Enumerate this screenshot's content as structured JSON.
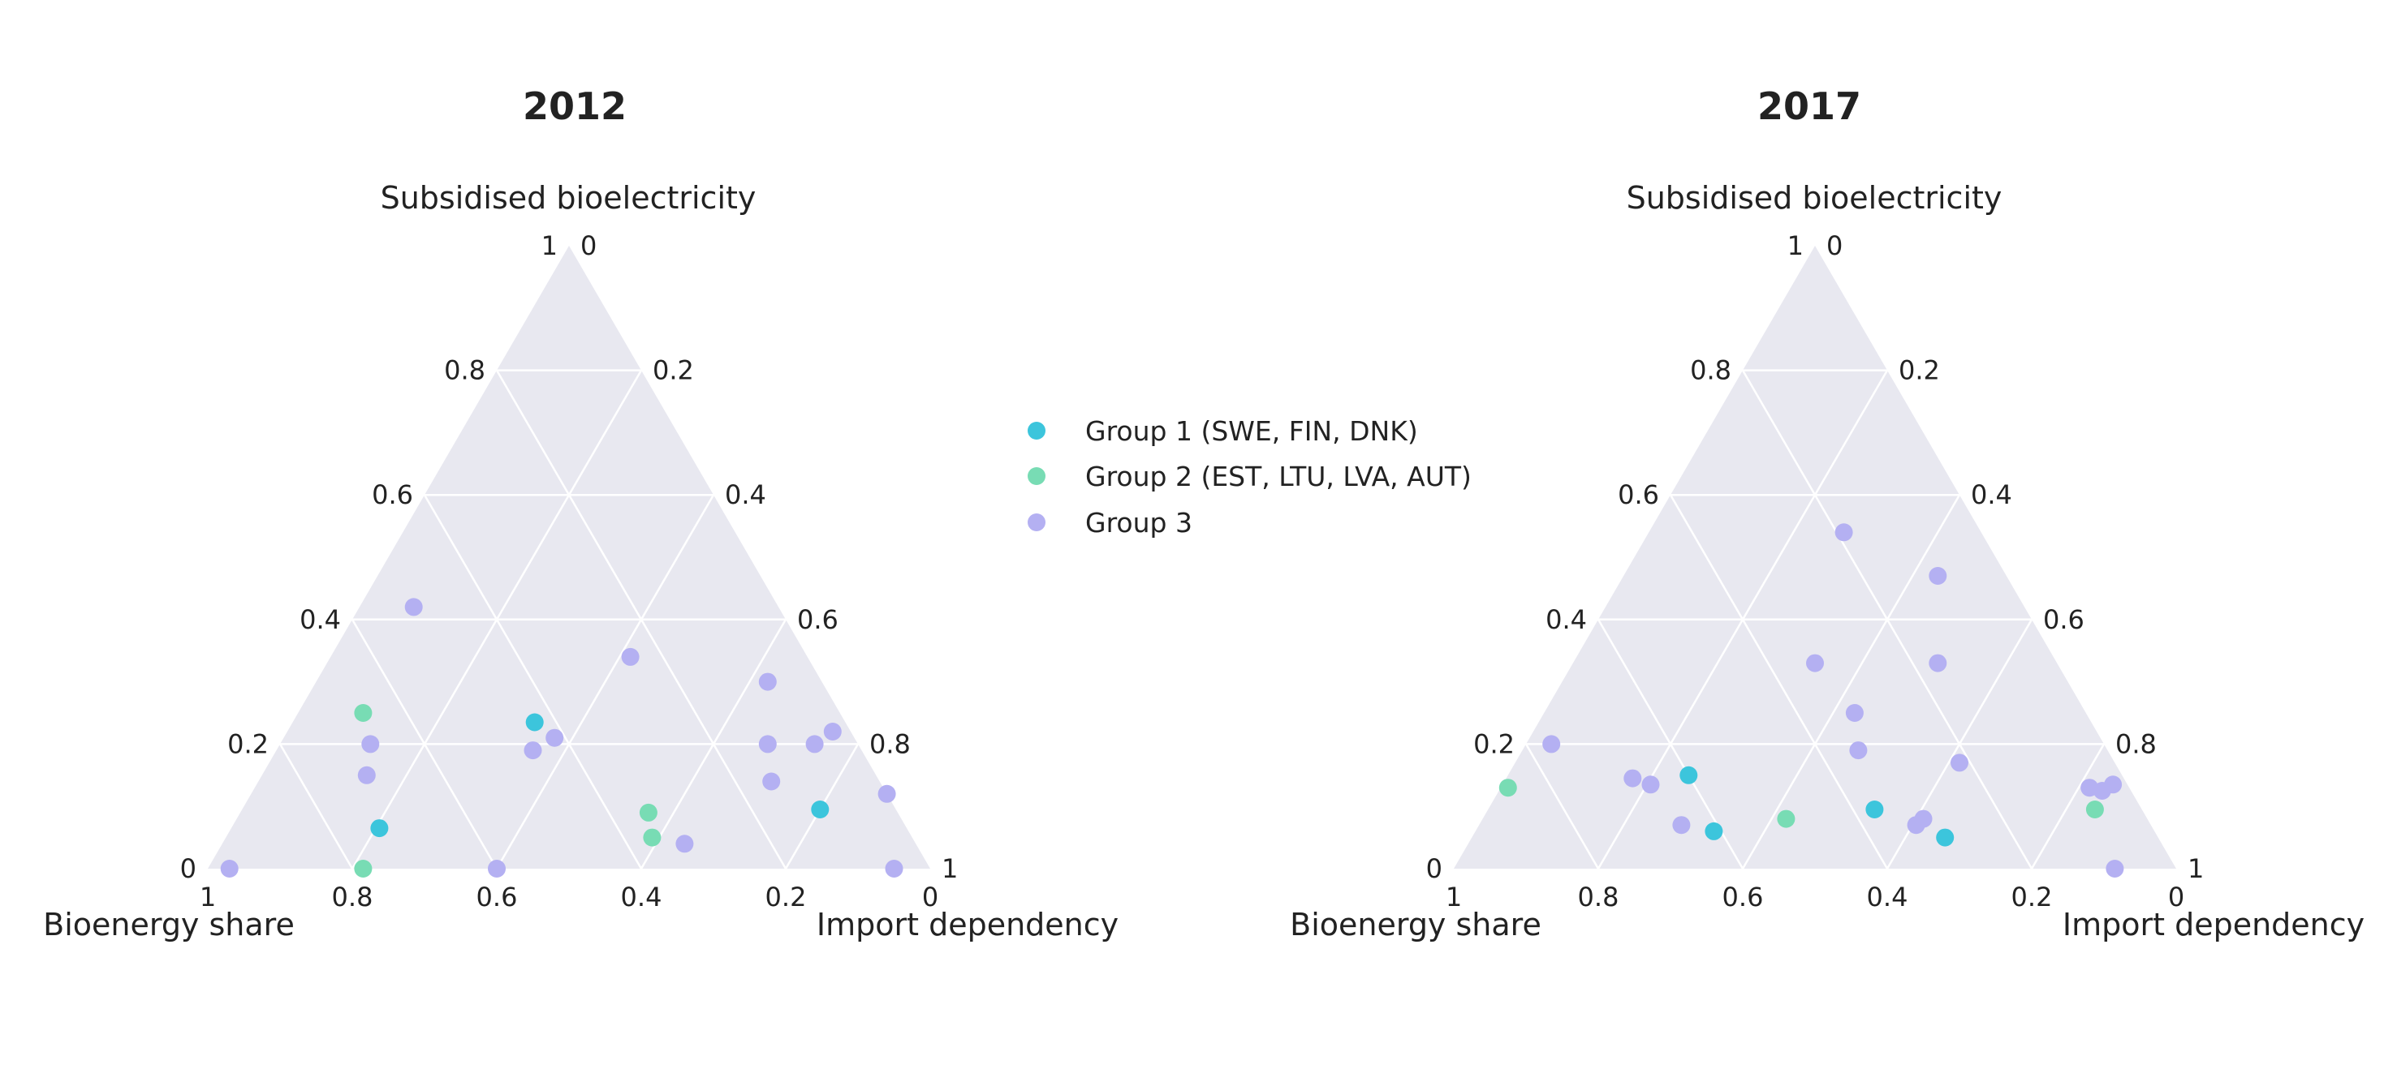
{
  "colors": {
    "background": "#ffffff",
    "plot_bg": "#E8E8F0",
    "grid": "#ffffff",
    "text": "#222222",
    "group1": "#3CC5DC",
    "group2": "#78DCB4",
    "group3": "#B4B0F2"
  },
  "legend": {
    "items": [
      {
        "label": "Group 1 (SWE, FIN, DNK)",
        "color": "#3CC5DC"
      },
      {
        "label": "Group 2 (EST, LTU, LVA, AUT)",
        "color": "#78DCB4"
      },
      {
        "label": "Group 3",
        "color": "#B4B0F2"
      }
    ]
  },
  "chart_data": [
    {
      "type": "scatter",
      "subtype": "ternary",
      "title": "2012",
      "axes": {
        "a": "Subsidised bioelectricity",
        "b": "Bioenergy share",
        "c": "Import dependency"
      },
      "ticks": [
        "0",
        "0.2",
        "0.4",
        "0.6",
        "0.8",
        "1"
      ],
      "grid": true,
      "series": [
        {
          "name": "Group 1 (SWE, FIN, DNK)",
          "points": [
            {
              "a": 0.235,
              "b": 0.43,
              "c": 0.335
            },
            {
              "a": 0.065,
              "b": 0.73,
              "c": 0.205
            },
            {
              "a": 0.095,
              "b": 0.105,
              "c": 0.8
            }
          ]
        },
        {
          "name": "Group 2 (EST, LTU, LVA, AUT)",
          "points": [
            {
              "a": 0.25,
              "b": 0.66,
              "c": 0.09
            },
            {
              "a": 0.0,
              "b": 0.785,
              "c": 0.215
            },
            {
              "a": 0.09,
              "b": 0.345,
              "c": 0.565
            },
            {
              "a": 0.05,
              "b": 0.36,
              "c": 0.59
            }
          ]
        },
        {
          "name": "Group 3",
          "points": [
            {
              "a": 0.42,
              "b": 0.505,
              "c": 0.075
            },
            {
              "a": 0.34,
              "b": 0.245,
              "c": 0.415
            },
            {
              "a": 0.2,
              "b": 0.675,
              "c": 0.125
            },
            {
              "a": 0.15,
              "b": 0.705,
              "c": 0.145
            },
            {
              "a": 0.21,
              "b": 0.415,
              "c": 0.375
            },
            {
              "a": 0.19,
              "b": 0.455,
              "c": 0.355
            },
            {
              "a": 0.3,
              "b": 0.075,
              "c": 0.625
            },
            {
              "a": 0.2,
              "b": 0.125,
              "c": 0.675
            },
            {
              "a": 0.2,
              "b": 0.06,
              "c": 0.74
            },
            {
              "a": 0.22,
              "b": 0.025,
              "c": 0.755
            },
            {
              "a": 0.14,
              "b": 0.15,
              "c": 0.71
            },
            {
              "a": 0.12,
              "b": 0.0,
              "c": 0.88
            },
            {
              "a": 0.04,
              "b": 0.32,
              "c": 0.64
            },
            {
              "a": 0.0,
              "b": 0.97,
              "c": 0.03
            },
            {
              "a": 0.0,
              "b": 0.6,
              "c": 0.4
            },
            {
              "a": 0.0,
              "b": 0.05,
              "c": 0.95
            }
          ]
        }
      ]
    },
    {
      "type": "scatter",
      "subtype": "ternary",
      "title": "2017",
      "axes": {
        "a": "Subsidised bioelectricity",
        "b": "Bioenergy share",
        "c": "Import dependency"
      },
      "ticks": [
        "0",
        "0.2",
        "0.4",
        "0.6",
        "0.8",
        "1"
      ],
      "grid": true,
      "series": [
        {
          "name": "Group 1 (SWE, FIN, DNK)",
          "points": [
            {
              "a": 0.15,
              "b": 0.6,
              "c": 0.25
            },
            {
              "a": 0.06,
              "b": 0.61,
              "c": 0.33
            },
            {
              "a": 0.095,
              "b": 0.37,
              "c": 0.535
            },
            {
              "a": 0.05,
              "b": 0.295,
              "c": 0.655
            }
          ]
        },
        {
          "name": "Group 2 (EST, LTU, LVA, AUT)",
          "points": [
            {
              "a": 0.13,
              "b": 0.86,
              "c": 0.01
            },
            {
              "a": 0.08,
              "b": 0.5,
              "c": 0.42
            },
            {
              "a": 0.095,
              "b": 0.065,
              "c": 0.84
            }
          ]
        },
        {
          "name": "Group 3",
          "points": [
            {
              "a": 0.54,
              "b": 0.19,
              "c": 0.27
            },
            {
              "a": 0.47,
              "b": 0.095,
              "c": 0.435
            },
            {
              "a": 0.33,
              "b": 0.335,
              "c": 0.335
            },
            {
              "a": 0.33,
              "b": 0.165,
              "c": 0.505
            },
            {
              "a": 0.25,
              "b": 0.32,
              "c": 0.43
            },
            {
              "a": 0.19,
              "b": 0.345,
              "c": 0.465
            },
            {
              "a": 0.2,
              "b": 0.765,
              "c": 0.035
            },
            {
              "a": 0.17,
              "b": 0.215,
              "c": 0.615
            },
            {
              "a": 0.145,
              "b": 0.68,
              "c": 0.175
            },
            {
              "a": 0.135,
              "b": 0.66,
              "c": 0.205
            },
            {
              "a": 0.07,
              "b": 0.65,
              "c": 0.28
            },
            {
              "a": 0.07,
              "b": 0.325,
              "c": 0.605
            },
            {
              "a": 0.08,
              "b": 0.31,
              "c": 0.61
            },
            {
              "a": 0.135,
              "b": 0.02,
              "c": 0.845
            },
            {
              "a": 0.13,
              "b": 0.055,
              "c": 0.815
            },
            {
              "a": 0.125,
              "b": 0.04,
              "c": 0.835
            },
            {
              "a": 0.0,
              "b": 0.085,
              "c": 0.915
            }
          ]
        }
      ]
    }
  ]
}
